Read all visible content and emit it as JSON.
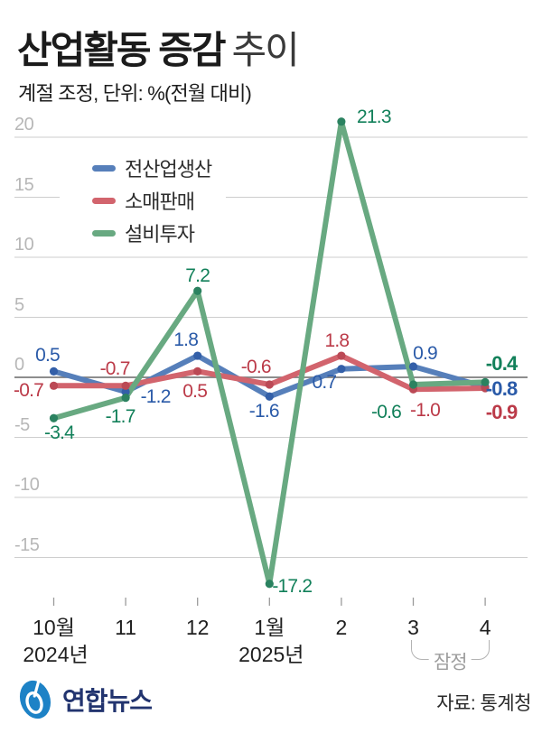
{
  "title": {
    "bold": "산업활동 증감",
    "light": "추이"
  },
  "subtitle": "계절 조정, 단위: %(전월 대비)",
  "chart_data": {
    "type": "line",
    "title": "산업활동 증감 추이",
    "unit_note": "계절 조정, 단위: %(전월 대비)",
    "categories": [
      "10월",
      "11",
      "12",
      "1월",
      "2",
      "3",
      "4"
    ],
    "category_sublabels": [
      {
        "index": 0,
        "label": "2024년"
      },
      {
        "index": 3,
        "label": "2025년"
      }
    ],
    "yticks": [
      20,
      15,
      10,
      5,
      0,
      -5,
      -10,
      -15
    ],
    "ylim": [
      -17.5,
      22
    ],
    "grid": true,
    "legend_position": "top-left",
    "annotation": "잠정",
    "annotation_span": [
      5,
      6
    ],
    "series": [
      {
        "name": "전산업생산",
        "color": "#567fba",
        "dot_color": "#335fa8",
        "label_color": "#2a5aa8",
        "values": [
          0.5,
          -1.2,
          1.8,
          -1.6,
          0.7,
          0.9,
          -0.8
        ],
        "label_offsets": [
          [
            -7,
            -17
          ],
          [
            33,
            6
          ],
          [
            -13,
            -17
          ],
          [
            -6,
            17
          ],
          [
            -19,
            15
          ],
          [
            13,
            -14
          ],
          [
            18,
            2
          ]
        ],
        "label_bold": [
          false,
          false,
          false,
          false,
          false,
          false,
          true
        ]
      },
      {
        "name": "소매판매",
        "color": "#d2646d",
        "dot_color": "#bb4955",
        "label_color": "#bb3a48",
        "values": [
          -0.7,
          -0.7,
          0.5,
          -0.6,
          1.8,
          -1.0,
          -0.9
        ],
        "label_offsets": [
          [
            -28,
            6
          ],
          [
            -12,
            -18
          ],
          [
            -3,
            23
          ],
          [
            -15,
            -19
          ],
          [
            -5,
            -16
          ],
          [
            13,
            24
          ],
          [
            18,
            27
          ]
        ],
        "label_bold": [
          false,
          false,
          false,
          false,
          false,
          false,
          true
        ]
      },
      {
        "name": "설비투자",
        "color": "#68a981",
        "dot_color": "#2b8260",
        "label_color": "#12805a",
        "values": [
          -3.4,
          -1.7,
          7.2,
          -17.2,
          21.3,
          -0.6,
          -0.4
        ],
        "label_offsets": [
          [
            6,
            17
          ],
          [
            -6,
            21
          ],
          [
            0,
            -16
          ],
          [
            25,
            3
          ],
          [
            36,
            -5
          ],
          [
            -30,
            31
          ],
          [
            18,
            -20
          ]
        ],
        "label_bold": [
          false,
          false,
          false,
          false,
          false,
          false,
          true
        ]
      }
    ],
    "axis_colors": {
      "gridline": "#cdcdcd",
      "zero_line": "#7d7d7d",
      "tick": "#9a9a9a",
      "ytick_text": "#b7b7b7"
    }
  },
  "footer": {
    "logo_text": "연합뉴스",
    "logo_ellipse_color": "#1d82c6",
    "logo_text_color": "#22346f",
    "source": "자료: 통계청"
  }
}
